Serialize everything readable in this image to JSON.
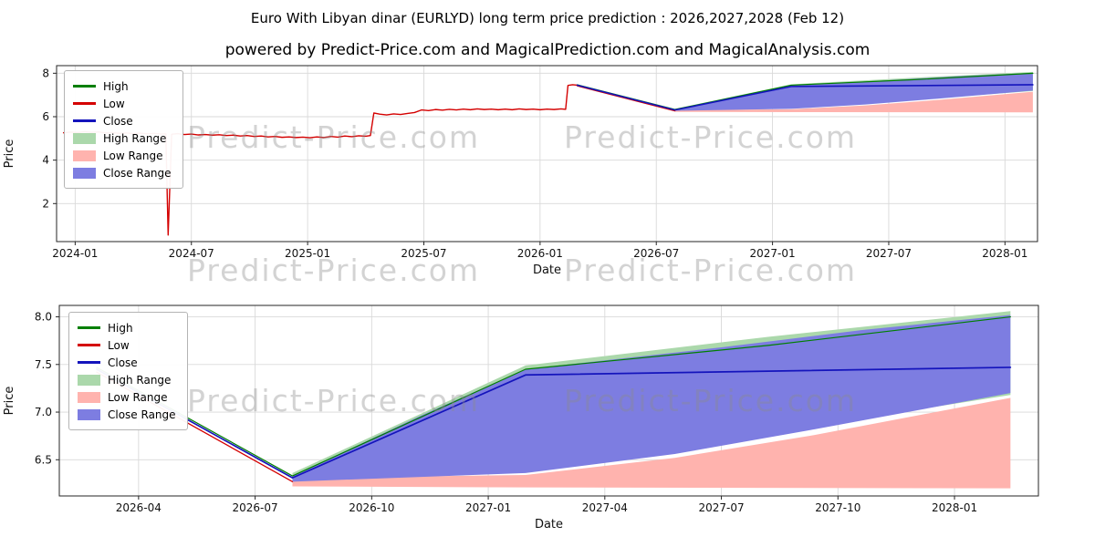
{
  "page": {
    "title": "Euro With Libyan dinar (EURLYD) long term price prediction : 2026,2027,2028 (Feb 12)",
    "subtitle": "powered by Predict-Price.com and MagicalPrediction.com and MagicalAnalysis.com",
    "watermark_text": "Predict-Price.com"
  },
  "colors": {
    "high_line": "#007f00",
    "low_line": "#d40000",
    "close_line": "#1414bc",
    "high_range": "#abd8ab",
    "low_range": "#ffb3ae",
    "close_range": "#7d7de1",
    "grid": "#d9d9d9",
    "spine": "#262626"
  },
  "legend": [
    {
      "label": "High",
      "type": "line",
      "color": "#007f00"
    },
    {
      "label": "Low",
      "type": "line",
      "color": "#d40000"
    },
    {
      "label": "Close",
      "type": "line",
      "color": "#1414bc"
    },
    {
      "label": "High Range",
      "type": "patch",
      "color": "#abd8ab"
    },
    {
      "label": "Low Range",
      "type": "patch",
      "color": "#ffb3ae"
    },
    {
      "label": "Close Range",
      "type": "patch",
      "color": "#7d7de1"
    }
  ],
  "chart_data": [
    {
      "type": "line",
      "title": "",
      "xlabel": "Date",
      "ylabel": "Price",
      "x_range": [
        2023.92,
        2028.14
      ],
      "y_range": [
        0.25,
        8.35
      ],
      "x_ticks": [
        {
          "v": 2024.0,
          "label": "2024-01"
        },
        {
          "v": 2024.5,
          "label": "2024-07"
        },
        {
          "v": 2025.0,
          "label": "2025-01"
        },
        {
          "v": 2025.5,
          "label": "2025-07"
        },
        {
          "v": 2026.0,
          "label": "2026-01"
        },
        {
          "v": 2026.5,
          "label": "2026-07"
        },
        {
          "v": 2027.0,
          "label": "2027-01"
        },
        {
          "v": 2027.5,
          "label": "2027-07"
        },
        {
          "v": 2028.0,
          "label": "2028-01"
        }
      ],
      "y_ticks": [
        {
          "v": 2,
          "label": "2"
        },
        {
          "v": 4,
          "label": "4"
        },
        {
          "v": 6,
          "label": "6"
        },
        {
          "v": 8,
          "label": "8"
        }
      ],
      "bands": [
        {
          "name": "high-range-band",
          "color": "#abd8ab",
          "upper": [
            [
              2026.58,
              6.36
            ],
            [
              2027.08,
              7.49
            ],
            [
              2027.6,
              7.79
            ],
            [
              2028.12,
              8.06
            ]
          ],
          "lower": [
            [
              2026.58,
              6.26
            ],
            [
              2027.08,
              6.38
            ],
            [
              2028.12,
              7.18
            ]
          ]
        },
        {
          "name": "low-range-band",
          "color": "#ffb3ae",
          "upper": [
            [
              2026.58,
              6.31
            ],
            [
              2027.08,
              6.34
            ],
            [
              2027.4,
              6.52
            ],
            [
              2027.7,
              6.76
            ],
            [
              2028.12,
              7.15
            ]
          ],
          "lower": [
            [
              2026.58,
              6.22
            ],
            [
              2027.08,
              6.21
            ],
            [
              2028.12,
              6.2
            ]
          ]
        },
        {
          "name": "close-range-band",
          "color": "#7d7de1",
          "upper": [
            [
              2026.58,
              6.33
            ],
            [
              2026.85,
              6.95
            ],
            [
              2027.08,
              7.45
            ],
            [
              2027.5,
              7.68
            ],
            [
              2027.8,
              7.86
            ],
            [
              2028.12,
              8.02
            ]
          ],
          "lower": [
            [
              2026.58,
              6.27
            ],
            [
              2027.08,
              6.36
            ],
            [
              2027.4,
              6.56
            ],
            [
              2027.7,
              6.82
            ],
            [
              2028.12,
              7.2
            ]
          ]
        }
      ],
      "lines": [
        {
          "name": "high-forecast",
          "color": "#007f00",
          "width": 1.2,
          "points": [
            [
              2026.16,
              7.47
            ],
            [
              2026.58,
              6.33
            ],
            [
              2027.08,
              7.45
            ],
            [
              2027.6,
              7.7
            ],
            [
              2028.12,
              8.0
            ]
          ]
        },
        {
          "name": "low-history",
          "color": "#d40000",
          "width": 1.4,
          "points": [
            [
              2023.95,
              5.26
            ],
            [
              2023.98,
              5.29
            ],
            [
              2024.01,
              5.27
            ],
            [
              2024.04,
              5.31
            ],
            [
              2024.07,
              5.28
            ],
            [
              2024.1,
              5.3
            ],
            [
              2024.13,
              5.25
            ],
            [
              2024.16,
              5.27
            ],
            [
              2024.19,
              5.23
            ],
            [
              2024.22,
              5.25
            ],
            [
              2024.25,
              5.22
            ],
            [
              2024.28,
              5.24
            ],
            [
              2024.31,
              5.21
            ],
            [
              2024.34,
              5.23
            ],
            [
              2024.37,
              5.2
            ],
            [
              2024.39,
              5.21
            ],
            [
              2024.4,
              0.55
            ],
            [
              2024.415,
              5.19
            ],
            [
              2024.44,
              5.22
            ],
            [
              2024.47,
              5.18
            ],
            [
              2024.5,
              5.2
            ],
            [
              2024.53,
              5.16
            ],
            [
              2024.56,
              5.18
            ],
            [
              2024.59,
              5.15
            ],
            [
              2024.62,
              5.17
            ],
            [
              2024.65,
              5.13
            ],
            [
              2024.68,
              5.15
            ],
            [
              2024.71,
              5.11
            ],
            [
              2024.74,
              5.13
            ],
            [
              2024.77,
              5.09
            ],
            [
              2024.8,
              5.11
            ],
            [
              2024.83,
              5.07
            ],
            [
              2024.86,
              5.09
            ],
            [
              2024.89,
              5.05
            ],
            [
              2024.92,
              5.07
            ],
            [
              2024.95,
              5.04
            ],
            [
              2024.98,
              5.06
            ],
            [
              2025.01,
              5.03
            ],
            [
              2025.04,
              5.07
            ],
            [
              2025.07,
              5.04
            ],
            [
              2025.1,
              5.09
            ],
            [
              2025.13,
              5.06
            ],
            [
              2025.16,
              5.11
            ],
            [
              2025.19,
              5.08
            ],
            [
              2025.22,
              5.12
            ],
            [
              2025.25,
              5.1
            ],
            [
              2025.27,
              5.13
            ],
            [
              2025.285,
              6.17
            ],
            [
              2025.31,
              6.12
            ],
            [
              2025.34,
              6.08
            ],
            [
              2025.37,
              6.13
            ],
            [
              2025.4,
              6.1
            ],
            [
              2025.43,
              6.15
            ],
            [
              2025.46,
              6.19
            ],
            [
              2025.49,
              6.31
            ],
            [
              2025.52,
              6.28
            ],
            [
              2025.55,
              6.33
            ],
            [
              2025.58,
              6.3
            ],
            [
              2025.61,
              6.34
            ],
            [
              2025.64,
              6.31
            ],
            [
              2025.67,
              6.35
            ],
            [
              2025.7,
              6.32
            ],
            [
              2025.73,
              6.36
            ],
            [
              2025.76,
              6.33
            ],
            [
              2025.79,
              6.35
            ],
            [
              2025.82,
              6.32
            ],
            [
              2025.85,
              6.35
            ],
            [
              2025.88,
              6.32
            ],
            [
              2025.91,
              6.36
            ],
            [
              2025.94,
              6.33
            ],
            [
              2025.97,
              6.35
            ],
            [
              2026.0,
              6.32
            ],
            [
              2026.03,
              6.35
            ],
            [
              2026.06,
              6.33
            ],
            [
              2026.09,
              6.36
            ],
            [
              2026.11,
              6.34
            ],
            [
              2026.12,
              7.44
            ],
            [
              2026.14,
              7.47
            ],
            [
              2026.16,
              7.45
            ]
          ]
        },
        {
          "name": "low-forecast",
          "color": "#d40000",
          "width": 1.3,
          "points": [
            [
              2026.16,
              7.42
            ],
            [
              2026.58,
              6.27
            ]
          ]
        },
        {
          "name": "close-forecast",
          "color": "#1414bc",
          "width": 1.6,
          "points": [
            [
              2026.16,
              7.45
            ],
            [
              2026.58,
              6.31
            ],
            [
              2027.08,
              7.39
            ],
            [
              2027.6,
              7.43
            ],
            [
              2028.12,
              7.47
            ]
          ]
        }
      ]
    },
    {
      "type": "line",
      "title": "",
      "xlabel": "Date",
      "ylabel": "Price",
      "x_range": [
        2026.08,
        2028.18
      ],
      "y_range": [
        6.12,
        8.12
      ],
      "x_ticks": [
        {
          "v": 2026.25,
          "label": "2026-04"
        },
        {
          "v": 2026.5,
          "label": "2026-07"
        },
        {
          "v": 2026.75,
          "label": "2026-10"
        },
        {
          "v": 2027.0,
          "label": "2027-01"
        },
        {
          "v": 2027.25,
          "label": "2027-04"
        },
        {
          "v": 2027.5,
          "label": "2027-07"
        },
        {
          "v": 2027.75,
          "label": "2027-10"
        },
        {
          "v": 2028.0,
          "label": "2028-01"
        }
      ],
      "y_ticks": [
        {
          "v": 6.5,
          "label": "6.5"
        },
        {
          "v": 7.0,
          "label": "7.0"
        },
        {
          "v": 7.5,
          "label": "7.5"
        },
        {
          "v": 8.0,
          "label": "8.0"
        }
      ],
      "bands": [
        {
          "name": "high-range-band",
          "color": "#abd8ab",
          "upper": [
            [
              2026.58,
              6.36
            ],
            [
              2027.08,
              7.49
            ],
            [
              2027.6,
              7.79
            ],
            [
              2028.12,
              8.06
            ]
          ],
          "lower": [
            [
              2026.58,
              6.26
            ],
            [
              2027.08,
              6.38
            ],
            [
              2028.12,
              7.18
            ]
          ]
        },
        {
          "name": "low-range-band",
          "color": "#ffb3ae",
          "upper": [
            [
              2026.58,
              6.31
            ],
            [
              2027.08,
              6.34
            ],
            [
              2027.4,
              6.52
            ],
            [
              2027.7,
              6.76
            ],
            [
              2028.12,
              7.15
            ]
          ],
          "lower": [
            [
              2026.58,
              6.22
            ],
            [
              2027.08,
              6.21
            ],
            [
              2028.12,
              6.2
            ]
          ]
        },
        {
          "name": "close-range-band",
          "color": "#7d7de1",
          "upper": [
            [
              2026.58,
              6.33
            ],
            [
              2026.85,
              6.95
            ],
            [
              2027.08,
              7.45
            ],
            [
              2027.5,
              7.68
            ],
            [
              2027.8,
              7.86
            ],
            [
              2028.12,
              8.02
            ]
          ],
          "lower": [
            [
              2026.58,
              6.27
            ],
            [
              2027.08,
              6.36
            ],
            [
              2027.4,
              6.56
            ],
            [
              2027.7,
              6.82
            ],
            [
              2028.12,
              7.2
            ]
          ]
        }
      ],
      "lines": [
        {
          "name": "high-forecast",
          "color": "#007f00",
          "width": 1.2,
          "points": [
            [
              2026.16,
              7.47
            ],
            [
              2026.58,
              6.33
            ],
            [
              2027.08,
              7.45
            ],
            [
              2027.6,
              7.7
            ],
            [
              2028.12,
              8.0
            ]
          ]
        },
        {
          "name": "low-forecast",
          "color": "#d40000",
          "width": 1.3,
          "points": [
            [
              2026.16,
              7.42
            ],
            [
              2026.58,
              6.27
            ]
          ]
        },
        {
          "name": "close-forecast",
          "color": "#1414bc",
          "width": 1.7,
          "points": [
            [
              2026.16,
              7.45
            ],
            [
              2026.58,
              6.31
            ],
            [
              2027.08,
              7.39
            ],
            [
              2027.6,
              7.43
            ],
            [
              2028.12,
              7.47
            ]
          ]
        }
      ]
    }
  ]
}
